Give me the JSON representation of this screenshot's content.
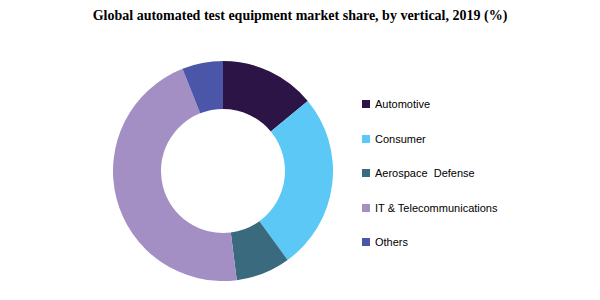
{
  "chart_data": {
    "type": "pie",
    "title": "Global automated test equipment market share, by vertical, 2019 (%)",
    "categories": [
      "Automotive",
      "Consumer",
      "Aerospace  Defense",
      "IT & Telecommunications",
      "Others"
    ],
    "values": [
      14,
      26,
      8,
      46,
      6
    ],
    "colors": [
      "#2d1446",
      "#5bc8f5",
      "#3a6a7e",
      "#a38fc4",
      "#4b56a8"
    ]
  }
}
